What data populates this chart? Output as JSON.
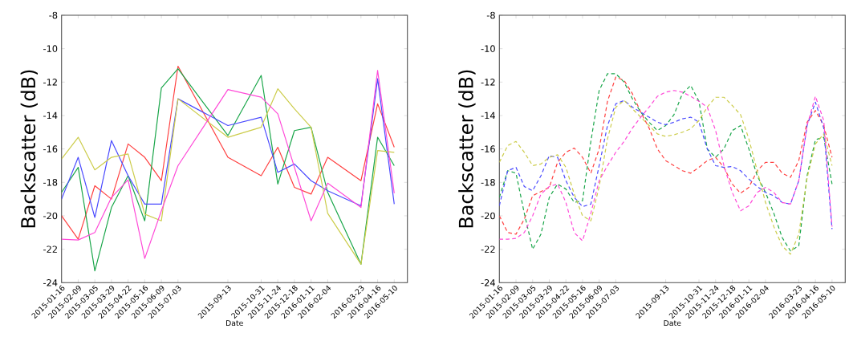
{
  "chart_data": [
    {
      "type": "line",
      "xlabel": "Date",
      "ylabel": "Backscatter (dB)",
      "line_style": "solid",
      "xlim": [
        "2015-01-16",
        "2016-05-29"
      ],
      "ylim": [
        -24,
        -8
      ],
      "yticks": [
        -24,
        -22,
        -20,
        -18,
        -16,
        -14,
        -12,
        -10,
        -8
      ],
      "xticks": [
        "2015-01-16",
        "2015-02-09",
        "2015-03-05",
        "2015-03-29",
        "2015-04-22",
        "2015-05-16",
        "2015-06-09",
        "2015-07-03",
        "2015-09-13",
        "2015-10-31",
        "2015-11-24",
        "2015-12-18",
        "2016-01-11",
        "2016-02-04",
        "2016-03-23",
        "2016-04-16",
        "2016-05-10"
      ],
      "x": [
        "2015-01-16",
        "2015-02-09",
        "2015-03-05",
        "2015-03-29",
        "2015-04-22",
        "2015-05-16",
        "2015-06-09",
        "2015-07-03",
        "2015-09-13",
        "2015-10-31",
        "2015-11-24",
        "2015-12-18",
        "2016-01-11",
        "2016-02-04",
        "2016-03-23",
        "2016-04-16",
        "2016-05-10"
      ],
      "series": [
        {
          "color": "#ff4040",
          "values": [
            -20.0,
            -21.4,
            -18.2,
            -19.0,
            -15.7,
            -16.5,
            -17.9,
            -11.05,
            -16.5,
            -17.6,
            -15.9,
            -18.3,
            -18.7,
            -16.5,
            -17.9,
            -13.3,
            -15.9
          ]
        },
        {
          "color": "#1aa64a",
          "values": [
            -18.6,
            -17.1,
            -23.3,
            -19.5,
            -17.6,
            -20.3,
            -12.35,
            -11.2,
            -15.2,
            -11.6,
            -18.1,
            -14.9,
            -14.7,
            -18.6,
            -22.9,
            -15.3,
            -17.0
          ]
        },
        {
          "color": "#4a4aff",
          "values": [
            -19.0,
            -16.5,
            -20.1,
            -15.5,
            -17.6,
            -19.3,
            -19.3,
            -13.0,
            -14.6,
            -14.1,
            -17.4,
            -16.9,
            -17.9,
            -18.5,
            -19.4,
            -11.8,
            -19.3
          ]
        },
        {
          "color": "#cccc4a",
          "values": [
            -16.6,
            -15.3,
            -17.25,
            -16.5,
            -16.3,
            -19.9,
            -20.3,
            -13.0,
            -15.3,
            -14.7,
            -12.4,
            -13.6,
            -14.7,
            -19.85,
            -22.9,
            -16.1,
            -16.2
          ]
        },
        {
          "color": "#ff4ad8",
          "values": [
            -21.4,
            -21.45,
            -21.0,
            -18.9,
            -17.85,
            -22.55,
            -19.7,
            -17.0,
            -12.45,
            -12.9,
            -13.9,
            -17.1,
            -20.3,
            -18.05,
            -19.5,
            -11.3,
            -18.65
          ]
        }
      ]
    },
    {
      "type": "line",
      "xlabel": "Date",
      "ylabel": "Backscatter (dB)",
      "line_style": "dashed",
      "xlim": [
        "2015-01-16",
        "2016-05-29"
      ],
      "ylim": [
        -24,
        -8
      ],
      "yticks": [
        -24,
        -22,
        -20,
        -18,
        -16,
        -14,
        -12,
        -10,
        -8
      ],
      "xticks": [
        "2015-01-16",
        "2015-02-09",
        "2015-03-05",
        "2015-03-29",
        "2015-04-22",
        "2015-05-16",
        "2015-06-09",
        "2015-07-03",
        "2015-09-13",
        "2015-10-31",
        "2015-11-24",
        "2015-12-18",
        "2016-01-11",
        "2016-02-04",
        "2016-03-23",
        "2016-04-16",
        "2016-05-10"
      ],
      "x": [
        "2015-01-16",
        "2015-01-28",
        "2015-02-09",
        "2015-02-21",
        "2015-03-05",
        "2015-03-17",
        "2015-03-29",
        "2015-04-10",
        "2015-04-22",
        "2015-05-04",
        "2015-05-16",
        "2015-05-28",
        "2015-06-09",
        "2015-06-21",
        "2015-07-03",
        "2015-07-15",
        "2015-07-27",
        "2015-08-08",
        "2015-08-20",
        "2015-09-01",
        "2015-09-13",
        "2015-09-25",
        "2015-10-07",
        "2015-10-19",
        "2015-10-31",
        "2015-11-12",
        "2015-11-24",
        "2015-12-06",
        "2015-12-18",
        "2015-12-30",
        "2016-01-11",
        "2016-01-23",
        "2016-02-04",
        "2016-02-16",
        "2016-02-28",
        "2016-03-11",
        "2016-03-23",
        "2016-04-04",
        "2016-04-16",
        "2016-04-28",
        "2016-05-10"
      ],
      "series": [
        {
          "color": "#ff4040",
          "values": [
            -20.0,
            -21.0,
            -21.1,
            -20.2,
            -18.8,
            -18.55,
            -18.3,
            -16.8,
            -16.2,
            -15.95,
            -16.5,
            -17.45,
            -16.0,
            -13.15,
            -11.7,
            -11.9,
            -12.7,
            -13.8,
            -14.75,
            -16.0,
            -16.7,
            -17.0,
            -17.3,
            -17.45,
            -17.1,
            -16.7,
            -16.5,
            -17.1,
            -18.1,
            -18.65,
            -18.3,
            -17.3,
            -16.8,
            -16.8,
            -17.45,
            -17.7,
            -16.7,
            -14.4,
            -13.7,
            -14.6,
            -16.5
          ]
        },
        {
          "color": "#1aa64a",
          "values": [
            -18.9,
            -17.3,
            -17.45,
            -19.85,
            -22.0,
            -21.1,
            -18.9,
            -18.1,
            -18.4,
            -19.2,
            -19.1,
            -15.55,
            -12.5,
            -11.5,
            -11.5,
            -12.0,
            -13.0,
            -13.8,
            -14.4,
            -14.9,
            -14.6,
            -13.95,
            -12.7,
            -12.2,
            -13.15,
            -16.0,
            -16.5,
            -16.0,
            -14.9,
            -14.6,
            -16.0,
            -17.6,
            -18.6,
            -19.85,
            -21.3,
            -22.1,
            -21.8,
            -17.6,
            -15.45,
            -15.3,
            -18.1
          ]
        },
        {
          "color": "#4a4aff",
          "values": [
            -19.4,
            -17.3,
            -17.1,
            -18.25,
            -18.5,
            -17.6,
            -16.4,
            -16.5,
            -17.9,
            -18.9,
            -19.45,
            -19.3,
            -17.0,
            -14.6,
            -13.3,
            -13.1,
            -13.5,
            -13.8,
            -14.1,
            -14.4,
            -14.55,
            -14.4,
            -14.2,
            -14.1,
            -14.4,
            -16.0,
            -17.0,
            -17.1,
            -17.05,
            -17.3,
            -17.8,
            -18.25,
            -18.6,
            -18.8,
            -19.2,
            -19.3,
            -17.9,
            -14.6,
            -13.2,
            -14.75,
            -20.8
          ]
        },
        {
          "color": "#cccc4a",
          "values": [
            -16.8,
            -15.8,
            -15.55,
            -16.2,
            -17.0,
            -16.9,
            -16.5,
            -16.35,
            -17.1,
            -18.7,
            -20.0,
            -20.3,
            -18.25,
            -15.4,
            -13.5,
            -13.1,
            -13.6,
            -14.1,
            -14.6,
            -15.1,
            -15.25,
            -15.15,
            -15.0,
            -14.8,
            -14.3,
            -13.5,
            -12.9,
            -12.9,
            -13.4,
            -13.95,
            -15.4,
            -17.3,
            -19.2,
            -20.65,
            -21.8,
            -22.3,
            -21.1,
            -17.75,
            -15.7,
            -15.1,
            -17.0
          ]
        },
        {
          "color": "#ff4ad8",
          "values": [
            -21.4,
            -21.4,
            -21.35,
            -21.0,
            -20.0,
            -18.7,
            -18.25,
            -18.1,
            -19.2,
            -21.0,
            -21.5,
            -19.85,
            -17.9,
            -17.0,
            -16.2,
            -15.55,
            -14.75,
            -14.1,
            -13.5,
            -12.85,
            -12.6,
            -12.5,
            -12.6,
            -12.85,
            -13.15,
            -13.5,
            -14.9,
            -17.0,
            -18.6,
            -19.7,
            -19.4,
            -18.6,
            -18.3,
            -18.6,
            -19.2,
            -19.3,
            -17.9,
            -14.6,
            -12.85,
            -14.3,
            -20.65
          ]
        }
      ]
    }
  ]
}
